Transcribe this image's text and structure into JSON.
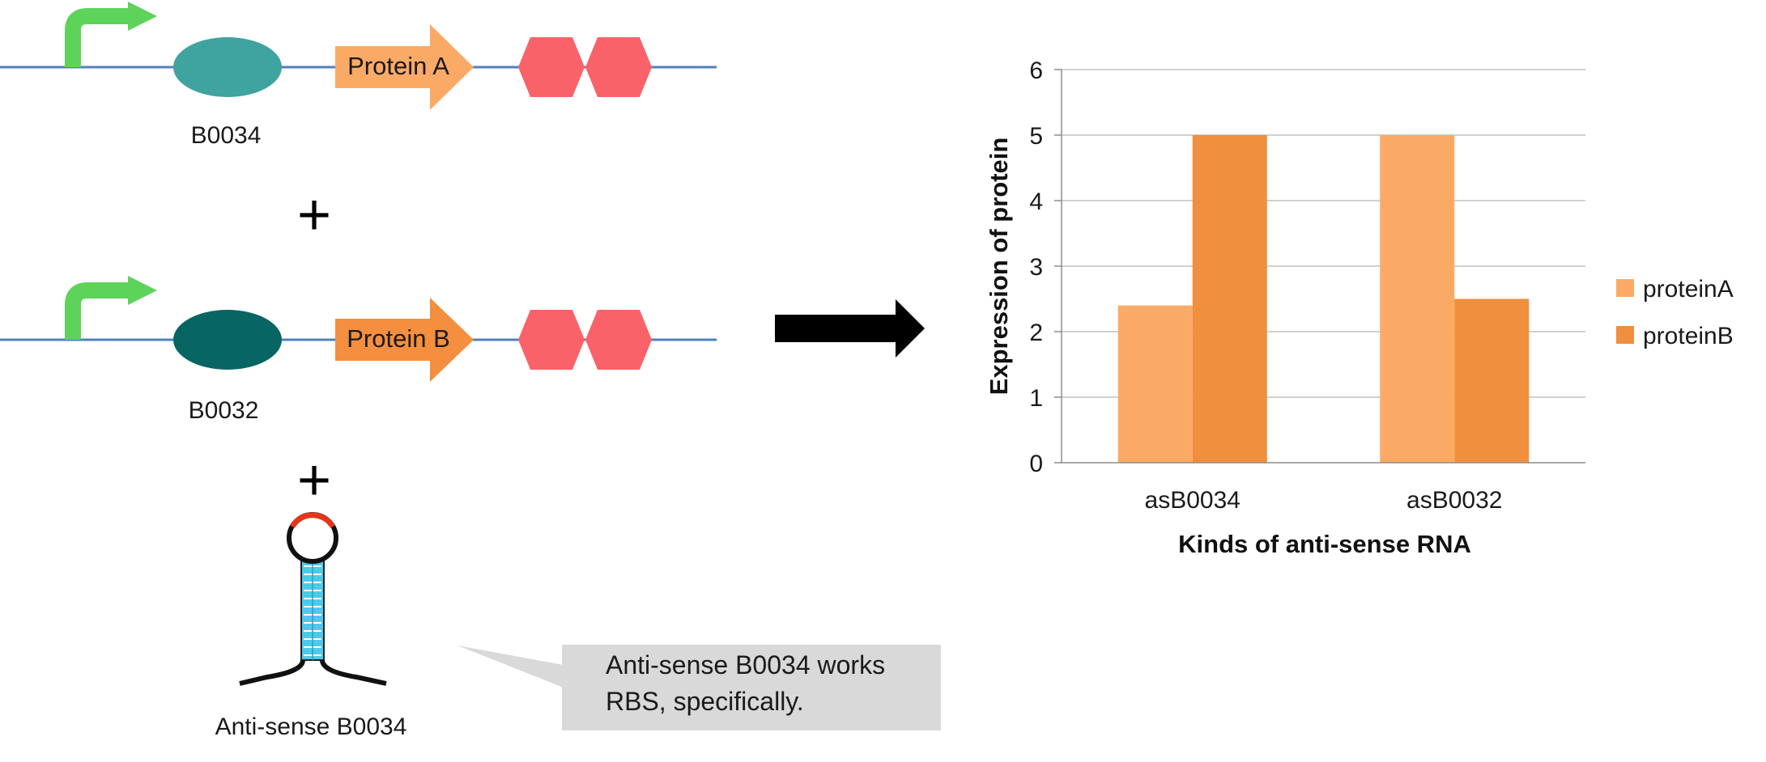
{
  "diagram": {
    "construct_a": {
      "rbs_label": "B0034",
      "gene_label": "Protein A",
      "rbs_color": "#3fa39f",
      "gene_color": "#fbaa66"
    },
    "construct_b": {
      "rbs_label": "B0032",
      "gene_label": "Protein B",
      "rbs_color": "#076563",
      "gene_color": "#f38f3f"
    },
    "plus_1": "+",
    "plus_2": "+",
    "antisense_label": "Anti-sense B0034",
    "callout": {
      "line1": "Anti-sense B0034 works",
      "line2": "RBS, specifically."
    },
    "colors": {
      "dna": "#4f81bd",
      "promoter": "#5ed35a",
      "terminator": "#fa6269",
      "callout_bg": "#d9d9d9",
      "stem": "#4ec9ea"
    }
  },
  "chart_data": {
    "type": "bar",
    "categories": [
      "asB0034",
      "asB0032"
    ],
    "series": [
      {
        "name": "proteinA",
        "values": [
          2.4,
          5
        ],
        "color": "#fbaa66"
      },
      {
        "name": "proteinB",
        "values": [
          5,
          2.5
        ],
        "color": "#f08f3e"
      }
    ],
    "xlabel": "Kinds of anti-sense RNA",
    "ylabel": "Expression of protein",
    "ylim": [
      0,
      6
    ],
    "yticks": [
      "0",
      "1",
      "2",
      "3",
      "4",
      "5",
      "6"
    ],
    "grid": true,
    "legend": "right"
  }
}
